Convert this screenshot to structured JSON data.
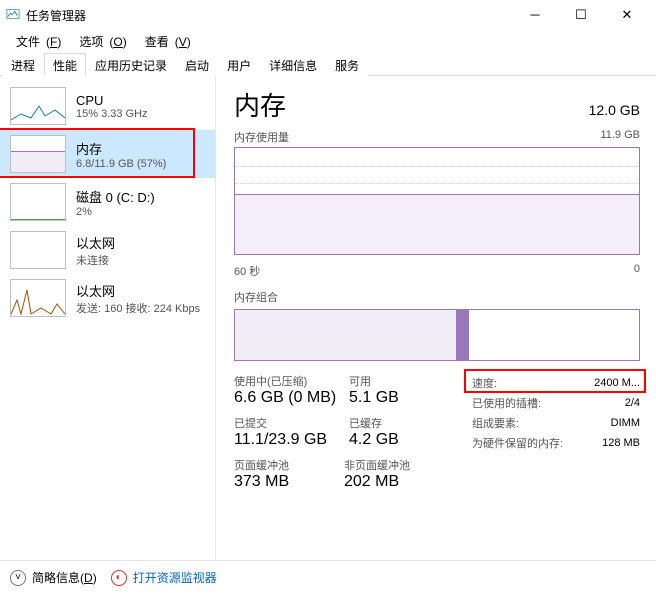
{
  "window": {
    "title": "任务管理器"
  },
  "menu": {
    "file": "文件",
    "file_k": "F",
    "options": "选项",
    "options_k": "O",
    "view": "查看",
    "view_k": "V"
  },
  "tabs": {
    "items": [
      {
        "label": "进程"
      },
      {
        "label": "性能"
      },
      {
        "label": "应用历史记录"
      },
      {
        "label": "启动"
      },
      {
        "label": "用户"
      },
      {
        "label": "详细信息"
      },
      {
        "label": "服务"
      }
    ],
    "active": 1
  },
  "sidebar": [
    {
      "name": "cpu",
      "l1": "CPU",
      "l2": "15% 3.33 GHz",
      "thumb": "cpu"
    },
    {
      "name": "memory",
      "l1": "内存",
      "l2": "6.8/11.9 GB (57%)",
      "thumb": "mem",
      "selected": true,
      "highlight": true
    },
    {
      "name": "disk",
      "l1": "磁盘 0 (C: D:)",
      "l2": "2%",
      "thumb": "disk"
    },
    {
      "name": "eth0",
      "l1": "以太网",
      "l2": "未连接",
      "thumb": "eth"
    },
    {
      "name": "eth1",
      "l1": "以太网",
      "l2": "发送: 160 接收: 224 Kbps",
      "thumb": "eth2"
    }
  ],
  "main": {
    "title": "内存",
    "total": "12.0 GB",
    "usage_label": "内存使用量",
    "usage_right": "11.9 GB",
    "axis_left": "60 秒",
    "axis_right": "0",
    "graph": {
      "fill_pct": 57,
      "grid_lines": 5,
      "line_color": "#9977bb",
      "fill_color": "#f3eef9"
    },
    "composition_label": "内存组合",
    "composition": {
      "used_pct": 55,
      "modified_pct": 3
    },
    "stats": {
      "row1": {
        "k1": "使用中(已压缩)",
        "k2": "可用",
        "v1": "6.6 GB (0 MB)",
        "v2": "5.1 GB"
      },
      "row2": {
        "k1": "已提交",
        "k2": "已缓存",
        "v1": "11.1/23.9 GB",
        "v2": "4.2 GB"
      },
      "row3": {
        "k1": "页面缓冲池",
        "k2": "非页面缓冲池",
        "v1": "373 MB",
        "v2": "202 MB"
      }
    },
    "specs": [
      {
        "k": "速度:",
        "v": "2400 M...",
        "highlight": true
      },
      {
        "k": "已使用的插槽:",
        "v": "2/4"
      },
      {
        "k": "组成要素:",
        "v": "DIMM"
      },
      {
        "k": "为硬件保留的内存:",
        "v": "128 MB"
      }
    ]
  },
  "footer": {
    "less": "简略信息",
    "less_k": "D",
    "resmon": "打开资源监视器"
  }
}
